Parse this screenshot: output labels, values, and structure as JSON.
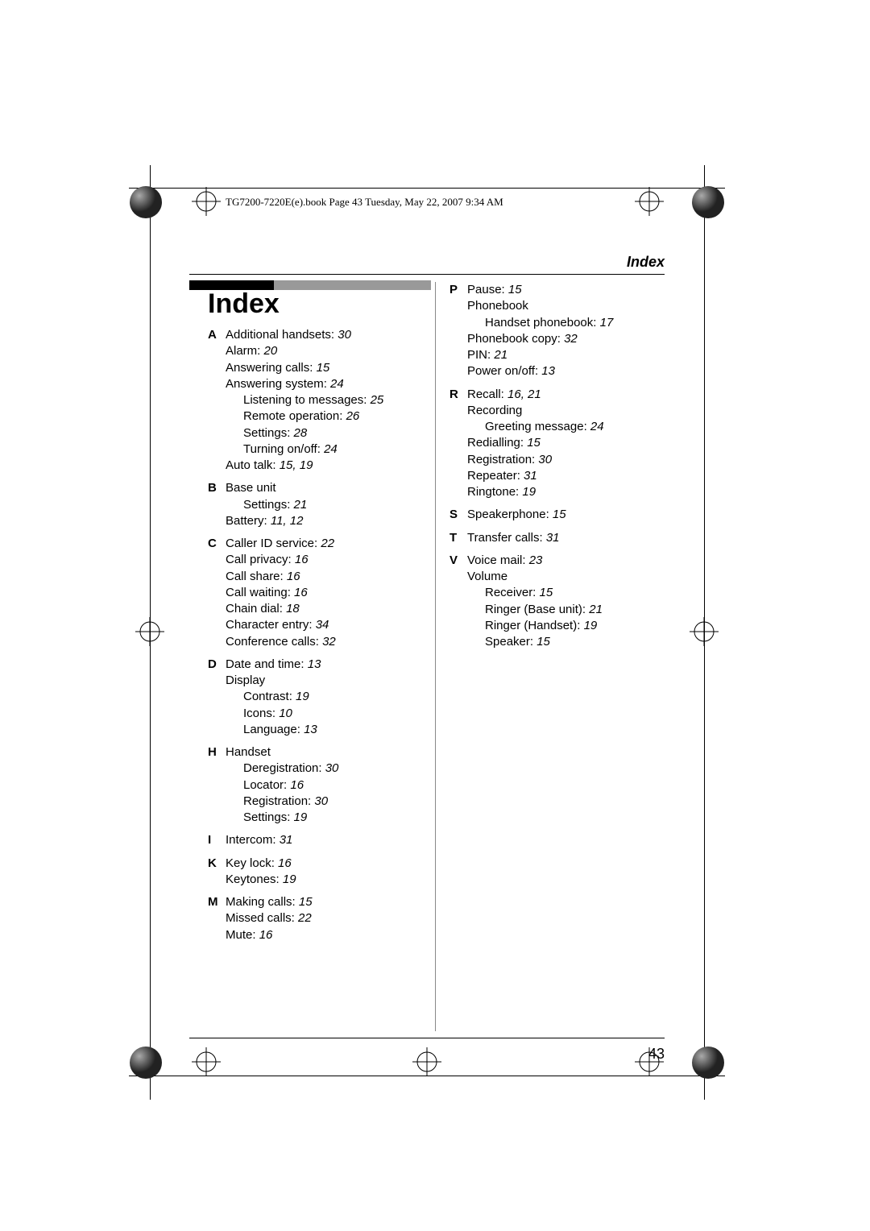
{
  "book_header": "TG7200-7220E(e).book  Page 43  Tuesday, May 22, 2007  9:34 AM",
  "section_label": "Index",
  "title": "Index",
  "page_number": "43",
  "index": [
    {
      "letter": "A",
      "entries": [
        {
          "t": "Additional handsets:",
          "p": "30"
        },
        {
          "t": "Alarm:",
          "p": "20"
        },
        {
          "t": "Answering calls:",
          "p": "15"
        },
        {
          "t": "Answering system:",
          "p": "24"
        },
        {
          "t": "Listening to messages:",
          "p": "25",
          "indent": 1
        },
        {
          "t": "Remote operation:",
          "p": "26",
          "indent": 1
        },
        {
          "t": "Settings:",
          "p": "28",
          "indent": 1
        },
        {
          "t": "Turning on/off:",
          "p": "24",
          "indent": 1
        },
        {
          "t": "Auto talk:",
          "p": "15, 19"
        }
      ]
    },
    {
      "letter": "B",
      "entries": [
        {
          "t": "Base unit",
          "p": ""
        },
        {
          "t": "Settings:",
          "p": "21",
          "indent": 1
        },
        {
          "t": "Battery:",
          "p": "11, 12"
        }
      ]
    },
    {
      "letter": "C",
      "entries": [
        {
          "t": "Caller ID service:",
          "p": "22"
        },
        {
          "t": "Call privacy:",
          "p": "16"
        },
        {
          "t": "Call share:",
          "p": "16"
        },
        {
          "t": "Call waiting:",
          "p": "16"
        },
        {
          "t": "Chain dial:",
          "p": "18"
        },
        {
          "t": "Character entry:",
          "p": "34"
        },
        {
          "t": "Conference calls:",
          "p": "32"
        }
      ]
    },
    {
      "letter": "D",
      "entries": [
        {
          "t": "Date and time:",
          "p": "13"
        },
        {
          "t": "Display",
          "p": ""
        },
        {
          "t": "Contrast:",
          "p": "19",
          "indent": 1
        },
        {
          "t": "Icons:",
          "p": "10",
          "indent": 1
        },
        {
          "t": "Language:",
          "p": "13",
          "indent": 1
        }
      ]
    },
    {
      "letter": "H",
      "entries": [
        {
          "t": "Handset",
          "p": ""
        },
        {
          "t": "Deregistration:",
          "p": "30",
          "indent": 1
        },
        {
          "t": "Locator:",
          "p": "16",
          "indent": 1
        },
        {
          "t": "Registration:",
          "p": "30",
          "indent": 1
        },
        {
          "t": "Settings:",
          "p": "19",
          "indent": 1
        }
      ]
    },
    {
      "letter": "I",
      "entries": [
        {
          "t": "Intercom:",
          "p": "31"
        }
      ]
    },
    {
      "letter": "K",
      "entries": [
        {
          "t": "Key lock:",
          "p": "16"
        },
        {
          "t": "Keytones:",
          "p": "19"
        }
      ]
    },
    {
      "letter": "M",
      "entries": [
        {
          "t": "Making calls:",
          "p": "15"
        },
        {
          "t": "Missed calls:",
          "p": "22"
        },
        {
          "t": "Mute:",
          "p": "16"
        }
      ]
    },
    {
      "letter": "P",
      "entries": [
        {
          "t": "Pause:",
          "p": "15"
        },
        {
          "t": "Phonebook",
          "p": ""
        },
        {
          "t": "Handset phonebook:",
          "p": "17",
          "indent": 1
        },
        {
          "t": "Phonebook copy:",
          "p": "32"
        },
        {
          "t": "PIN:",
          "p": "21"
        },
        {
          "t": "Power on/off:",
          "p": "13"
        }
      ]
    },
    {
      "letter": "R",
      "entries": [
        {
          "t": "Recall:",
          "p": "16, 21"
        },
        {
          "t": "Recording",
          "p": ""
        },
        {
          "t": "Greeting message:",
          "p": "24",
          "indent": 1
        },
        {
          "t": "Redialling:",
          "p": "15"
        },
        {
          "t": "Registration:",
          "p": "30"
        },
        {
          "t": "Repeater:",
          "p": "31"
        },
        {
          "t": "Ringtone:",
          "p": "19"
        }
      ]
    },
    {
      "letter": "S",
      "entries": [
        {
          "t": "Speakerphone:",
          "p": "15"
        }
      ]
    },
    {
      "letter": "T",
      "entries": [
        {
          "t": "Transfer calls:",
          "p": "31"
        }
      ]
    },
    {
      "letter": "V",
      "entries": [
        {
          "t": "Voice mail:",
          "p": "23"
        },
        {
          "t": "Volume",
          "p": ""
        },
        {
          "t": "Receiver:",
          "p": "15",
          "indent": 1
        },
        {
          "t": "Ringer (Base unit):",
          "p": "21",
          "indent": 1
        },
        {
          "t": "Ringer (Handset):",
          "p": "19",
          "indent": 1
        },
        {
          "t": "Speaker:",
          "p": "15",
          "indent": 1
        }
      ]
    }
  ],
  "marks": {
    "cross_svg_color": "#000",
    "ball_fill": "#555"
  }
}
